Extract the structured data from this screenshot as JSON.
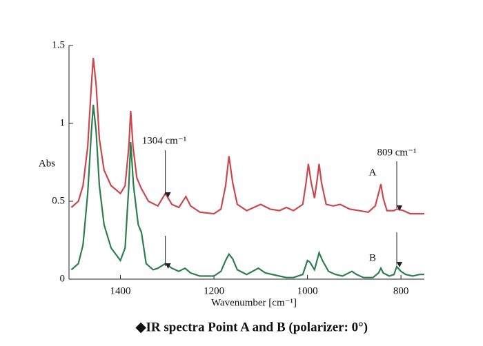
{
  "chart_data": {
    "type": "line",
    "caption": "◆IR spectra Point A and B (polarizer: 0°)",
    "xlabel": "Wavenumber [cm⁻¹]",
    "ylabel": "Abs",
    "xlim": [
      1510,
      750
    ],
    "ylim": [
      0,
      1.5
    ],
    "xticks": [
      1400,
      1200,
      1000,
      800
    ],
    "yticks": [
      0,
      0.5,
      1,
      1.5
    ],
    "annotations": [
      {
        "text": "1304 cm⁻¹",
        "x": 1304
      },
      {
        "text": "809 cm⁻¹",
        "x": 809
      }
    ],
    "series": [
      {
        "name": "A",
        "color": "#c9474d",
        "x": [
          1505,
          1490,
          1480,
          1470,
          1462,
          1458,
          1452,
          1445,
          1435,
          1420,
          1400,
          1390,
          1382,
          1378,
          1373,
          1365,
          1355,
          1340,
          1320,
          1304,
          1290,
          1275,
          1260,
          1250,
          1230,
          1200,
          1185,
          1175,
          1168,
          1160,
          1150,
          1130,
          1100,
          1080,
          1060,
          1045,
          1030,
          1010,
          1003,
          998,
          992,
          985,
          980,
          975,
          970,
          960,
          945,
          930,
          910,
          890,
          870,
          855,
          848,
          843,
          838,
          830,
          815,
          809,
          795,
          780,
          760,
          750
        ],
        "values": [
          0.46,
          0.5,
          0.6,
          0.85,
          1.25,
          1.42,
          1.25,
          0.9,
          0.7,
          0.6,
          0.55,
          0.6,
          0.85,
          1.08,
          0.85,
          0.65,
          0.58,
          0.5,
          0.47,
          0.55,
          0.48,
          0.46,
          0.53,
          0.47,
          0.43,
          0.42,
          0.45,
          0.6,
          0.79,
          0.62,
          0.48,
          0.44,
          0.48,
          0.45,
          0.44,
          0.46,
          0.44,
          0.48,
          0.62,
          0.74,
          0.62,
          0.52,
          0.62,
          0.74,
          0.62,
          0.48,
          0.47,
          0.48,
          0.45,
          0.44,
          0.43,
          0.47,
          0.55,
          0.61,
          0.52,
          0.44,
          0.44,
          0.45,
          0.44,
          0.42,
          0.42,
          0.42
        ]
      },
      {
        "name": "B",
        "color": "#2e7d4f",
        "x": [
          1505,
          1490,
          1480,
          1470,
          1462,
          1458,
          1452,
          1445,
          1435,
          1420,
          1400,
          1390,
          1382,
          1378,
          1372,
          1362,
          1355,
          1345,
          1330,
          1320,
          1304,
          1290,
          1275,
          1262,
          1250,
          1230,
          1200,
          1185,
          1175,
          1168,
          1160,
          1150,
          1130,
          1105,
          1090,
          1060,
          1045,
          1030,
          1010,
          1000,
          995,
          985,
          975,
          968,
          955,
          940,
          925,
          905,
          895,
          880,
          860,
          848,
          843,
          838,
          825,
          815,
          809,
          800,
          790,
          775,
          760,
          750
        ],
        "values": [
          0.06,
          0.1,
          0.22,
          0.55,
          0.95,
          1.12,
          0.95,
          0.6,
          0.35,
          0.2,
          0.12,
          0.2,
          0.6,
          0.88,
          0.6,
          0.35,
          0.3,
          0.1,
          0.06,
          0.07,
          0.1,
          0.07,
          0.05,
          0.07,
          0.04,
          0.02,
          0.02,
          0.05,
          0.12,
          0.16,
          0.13,
          0.06,
          0.03,
          0.07,
          0.04,
          0.02,
          0.01,
          0.01,
          0.03,
          0.12,
          0.11,
          0.06,
          0.17,
          0.12,
          0.05,
          0.03,
          0.02,
          0.05,
          0.03,
          0.01,
          0.01,
          0.04,
          0.07,
          0.04,
          0.02,
          0.03,
          0.08,
          0.05,
          0.03,
          0.02,
          0.03,
          0.03
        ]
      }
    ]
  }
}
